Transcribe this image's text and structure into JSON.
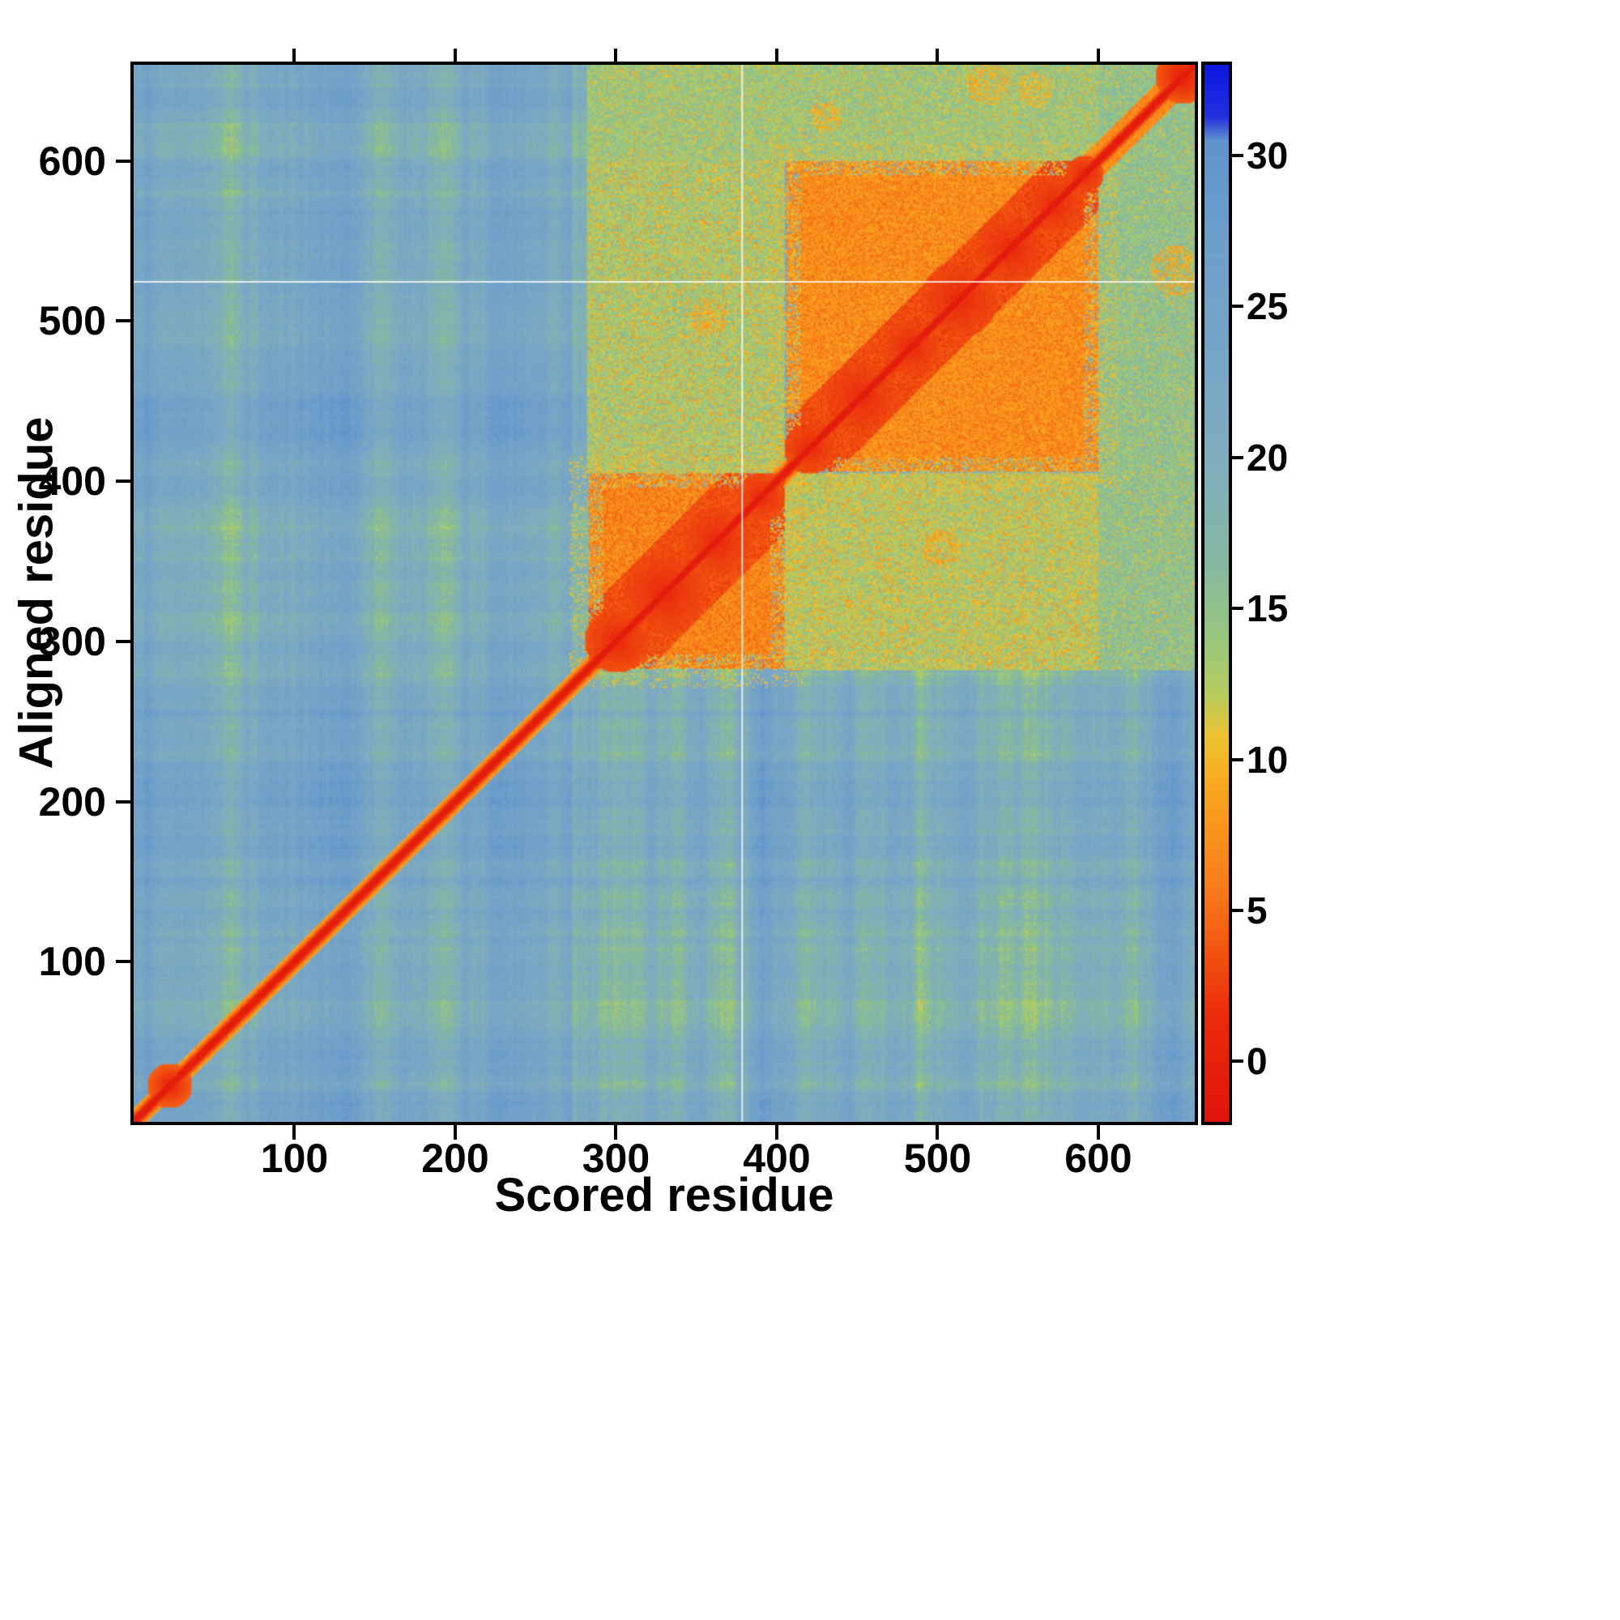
{
  "figure": {
    "xlabel": "Scored residue",
    "ylabel": "Aligned residue"
  },
  "chart_data": {
    "type": "heatmap",
    "title": "",
    "xlabel": "Scored residue",
    "ylabel": "Aligned residue",
    "n_residues": 660,
    "x_range": [
      1,
      660
    ],
    "y_range": [
      1,
      660
    ],
    "x_ticks": [
      100,
      200,
      300,
      400,
      500,
      600
    ],
    "y_ticks": [
      100,
      200,
      300,
      400,
      500,
      600
    ],
    "grid": false,
    "colorbar": {
      "position": "right",
      "orientation": "vertical",
      "ticks": [
        0,
        5,
        10,
        15,
        20,
        25,
        30
      ],
      "vmin": -2,
      "vmax": 33
    },
    "colormap_stops": [
      [
        -2.0,
        "#e0150b"
      ],
      [
        1.5,
        "#ea2b0d"
      ],
      [
        3.5,
        "#f25210"
      ],
      [
        6.0,
        "#f87f1a"
      ],
      [
        9.0,
        "#faa61f"
      ],
      [
        10.8,
        "#ecc433"
      ],
      [
        12.3,
        "#b3cc62"
      ],
      [
        14.3,
        "#96c682"
      ],
      [
        16.5,
        "#86b8a2"
      ],
      [
        19.5,
        "#82aebc"
      ],
      [
        23.0,
        "#78a6c6"
      ],
      [
        27.5,
        "#6d9ecb"
      ],
      [
        30.5,
        "#6093cc"
      ],
      [
        31.3,
        "#2330e0"
      ],
      [
        33.0,
        "#0d18dd"
      ]
    ],
    "features": {
      "background_level": 24.6,
      "streak_band": [
        272,
        624
      ],
      "blocks": [
        {
          "x0": 282,
          "x1": 405,
          "y0": 282,
          "y1": 405,
          "level": 6.5,
          "diag_halfwidth": 38,
          "diag_level": 2.2
        },
        {
          "x0": 405,
          "x1": 600,
          "y0": 405,
          "y1": 600,
          "level": 7.0,
          "diag_halfwidth": 32,
          "diag_level": 2.0
        }
      ],
      "cross_regions": [
        {
          "x0": 282,
          "x1": 405,
          "y0": 405,
          "y1": 600,
          "level": 13.5,
          "speckle_level": 8.5,
          "speckle_density": 0.1
        },
        {
          "x0": 405,
          "x1": 600,
          "y0": 282,
          "y1": 405,
          "level": 13.0,
          "speckle_level": 8.5,
          "speckle_density": 0.12
        }
      ],
      "strips": [
        {
          "x0": 282,
          "x1": 600,
          "y0": 600,
          "y1": 660,
          "level": 14.0,
          "speckle_level": 9.5,
          "speckle_density": 0.07
        },
        {
          "x0": 600,
          "x1": 660,
          "y0": 282,
          "y1": 600,
          "level": 15.0,
          "speckle_level": 10.0,
          "speckle_density": 0.05
        },
        {
          "x0": 600,
          "x1": 660,
          "y0": 600,
          "y1": 660,
          "level": 15.0,
          "speckle_level": 10.0,
          "speckle_density": 0.05
        }
      ],
      "blobs": [
        {
          "x": 22,
          "y": 22,
          "r": 14,
          "level": 0.8,
          "speckle": false
        },
        {
          "x": 652,
          "y": 652,
          "r": 17,
          "level": 0.5,
          "speckle": false
        },
        {
          "x": 648,
          "y": 531,
          "r": 16,
          "level": 9.0,
          "speckle": true
        },
        {
          "x": 531,
          "y": 648,
          "r": 14,
          "level": 9.5,
          "speckle": true
        },
        {
          "x": 560,
          "y": 644,
          "r": 11,
          "level": 10.0,
          "speckle": true
        },
        {
          "x": 430,
          "y": 627,
          "r": 10,
          "level": 9.5,
          "speckle": true
        },
        {
          "x": 357,
          "y": 502,
          "r": 12,
          "level": 9.0,
          "speckle": true
        },
        {
          "x": 502,
          "y": 357,
          "r": 12,
          "level": 9.0,
          "speckle": true
        }
      ],
      "red_subblobs": [
        {
          "x": 300,
          "y": 300,
          "r": 20
        },
        {
          "x": 330,
          "y": 330,
          "r": 26
        },
        {
          "x": 362,
          "y": 362,
          "r": 22
        },
        {
          "x": 390,
          "y": 390,
          "r": 15
        },
        {
          "x": 420,
          "y": 420,
          "r": 16
        },
        {
          "x": 452,
          "y": 452,
          "r": 22
        },
        {
          "x": 483,
          "y": 483,
          "r": 18
        },
        {
          "x": 513,
          "y": 513,
          "r": 24
        },
        {
          "x": 545,
          "y": 545,
          "r": 22
        },
        {
          "x": 572,
          "y": 572,
          "r": 18
        },
        {
          "x": 591,
          "y": 591,
          "r": 12
        }
      ],
      "gap_lines": {
        "vertical_x": 378,
        "horizontal_y": 525
      }
    },
    "matrix_downsampled": {
      "bin_size": 30,
      "row_order": "bottom-to-top",
      "rows": [
        [
          2,
          24,
          24,
          24,
          24,
          24,
          24,
          24,
          24,
          21,
          21,
          21,
          21,
          21,
          21,
          21,
          21,
          21,
          21,
          21,
          23,
          23
        ],
        [
          24,
          2,
          24,
          24,
          24,
          24,
          24,
          24,
          24,
          21,
          21,
          21,
          21,
          21,
          21,
          21,
          21,
          21,
          21,
          21,
          23,
          23
        ],
        [
          24,
          24,
          2,
          24,
          24,
          24,
          24,
          24,
          24,
          21,
          21,
          21,
          21,
          21,
          21,
          21,
          21,
          21,
          21,
          21,
          23,
          23
        ],
        [
          24,
          24,
          24,
          2,
          24,
          24,
          24,
          24,
          24,
          21,
          21,
          21,
          21,
          21,
          21,
          21,
          21,
          21,
          21,
          21,
          23,
          23
        ],
        [
          24,
          24,
          24,
          24,
          2,
          24,
          24,
          24,
          24,
          21,
          21,
          21,
          21,
          21,
          21,
          21,
          21,
          21,
          21,
          21,
          23,
          23
        ],
        [
          24,
          24,
          24,
          24,
          24,
          2,
          24,
          24,
          24,
          21,
          21,
          21,
          21,
          21,
          21,
          21,
          21,
          21,
          21,
          21,
          23,
          23
        ],
        [
          24,
          24,
          24,
          24,
          24,
          24,
          2,
          24,
          24,
          21,
          21,
          21,
          21,
          21,
          21,
          21,
          21,
          21,
          21,
          21,
          23,
          23
        ],
        [
          24,
          24,
          24,
          24,
          24,
          24,
          24,
          2,
          24,
          21,
          21,
          21,
          21,
          21,
          21,
          21,
          21,
          21,
          21,
          21,
          23,
          23
        ],
        [
          24,
          24,
          24,
          24,
          24,
          24,
          24,
          24,
          2,
          21,
          21,
          21,
          21,
          21,
          21,
          21,
          21,
          21,
          21,
          21,
          23,
          23
        ],
        [
          22,
          22,
          22,
          22,
          22,
          22,
          22,
          22,
          22,
          2,
          6,
          6,
          6,
          9,
          12,
          12,
          12,
          12,
          12,
          12,
          22,
          22
        ],
        [
          22,
          22,
          22,
          22,
          22,
          22,
          22,
          22,
          22,
          6,
          2,
          6,
          6,
          9,
          12,
          12,
          12,
          12,
          12,
          12,
          22,
          22
        ],
        [
          22,
          22,
          22,
          22,
          22,
          22,
          22,
          22,
          22,
          6,
          6,
          2,
          6,
          9,
          12,
          12,
          12,
          12,
          12,
          12,
          22,
          22
        ],
        [
          22,
          22,
          22,
          22,
          22,
          22,
          22,
          22,
          22,
          6,
          6,
          6,
          2,
          8,
          12,
          12,
          12,
          12,
          12,
          12,
          22,
          22
        ],
        [
          22,
          22,
          22,
          22,
          22,
          22,
          22,
          22,
          22,
          10,
          10,
          10,
          8,
          2,
          7,
          7,
          7,
          8,
          8,
          8,
          22,
          22
        ],
        [
          22,
          22,
          22,
          22,
          22,
          22,
          22,
          22,
          22,
          13,
          13,
          13,
          13,
          7,
          2,
          7,
          7,
          7,
          7,
          7,
          22,
          22
        ],
        [
          22,
          22,
          22,
          22,
          22,
          22,
          22,
          22,
          22,
          13,
          13,
          13,
          13,
          7,
          7,
          2,
          7,
          7,
          7,
          7,
          22,
          22
        ],
        [
          22,
          22,
          22,
          22,
          22,
          22,
          22,
          22,
          22,
          13,
          13,
          13,
          13,
          8,
          7,
          7,
          2,
          7,
          7,
          7,
          22,
          22
        ],
        [
          22,
          22,
          22,
          22,
          22,
          22,
          22,
          22,
          22,
          13,
          13,
          13,
          13,
          8,
          7,
          7,
          7,
          2,
          7,
          7,
          22,
          22
        ],
        [
          22,
          22,
          22,
          22,
          22,
          22,
          22,
          22,
          22,
          14,
          14,
          14,
          13,
          8,
          7,
          7,
          7,
          7,
          2,
          7,
          22,
          22
        ],
        [
          22,
          22,
          22,
          22,
          22,
          22,
          22,
          22,
          22,
          14,
          14,
          14,
          13,
          8,
          7,
          7,
          7,
          7,
          7,
          2,
          22,
          22
        ],
        [
          24,
          24,
          24,
          24,
          24,
          24,
          24,
          24,
          24,
          15,
          15,
          15,
          14,
          13,
          13,
          13,
          13,
          13,
          13,
          13,
          2,
          18
        ],
        [
          25,
          25,
          25,
          25,
          25,
          25,
          24,
          24,
          24,
          16,
          16,
          16,
          15,
          14,
          14,
          13,
          13,
          13,
          13,
          13,
          4,
          1
        ]
      ]
    }
  }
}
